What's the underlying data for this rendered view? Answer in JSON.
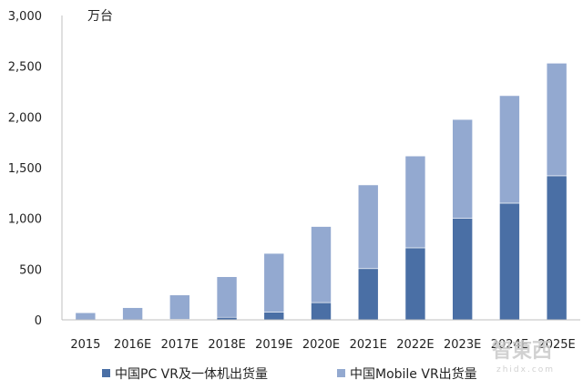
{
  "chart_data": {
    "type": "bar",
    "stacked": true,
    "unit_label": "万台",
    "categories": [
      "2015",
      "2016E",
      "2017E",
      "2018E",
      "2019E",
      "2020E",
      "2021E",
      "2022E",
      "2023E",
      "2024E",
      "2025E"
    ],
    "series": [
      {
        "name": "中国PC VR及一体机出货量",
        "color": "#4a6fa5",
        "values": [
          0,
          0,
          5,
          25,
          75,
          170,
          505,
          710,
          1000,
          1150,
          1420
        ]
      },
      {
        "name": "中国Mobile VR出货量",
        "color": "#93a9d0",
        "values": [
          70,
          120,
          240,
          400,
          580,
          750,
          825,
          905,
          975,
          1060,
          1110
        ]
      }
    ],
    "ylim": [
      0,
      3000
    ],
    "yticks": [
      0,
      500,
      1000,
      1500,
      2000,
      2500,
      3000
    ],
    "ytick_labels": [
      "0",
      "500",
      "1,000",
      "1,500",
      "2,000",
      "2,500",
      "3,000"
    ],
    "grid": false,
    "legend_position": "bottom"
  },
  "watermark": {
    "text": "智東西",
    "subtext": "zhidx.com"
  }
}
